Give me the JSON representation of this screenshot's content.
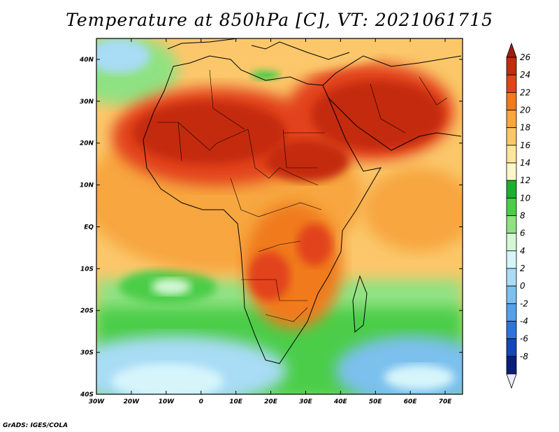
{
  "title": "Temperature at 850hPa [C], VT: 2021061715",
  "footer": "GrADS: IGES/COLA",
  "map": {
    "variable": "Temperature at 850hPa",
    "units": "C",
    "valid_time": "2021061715",
    "lon_range": [
      -30,
      75
    ],
    "lat_range": [
      -40,
      45
    ],
    "x_ticks": [
      "30W",
      "20W",
      "10W",
      "0",
      "10E",
      "20E",
      "30E",
      "40E",
      "50E",
      "60E",
      "70E"
    ],
    "y_ticks": [
      "40N",
      "30N",
      "20N",
      "10N",
      "EQ",
      "10S",
      "20S",
      "30S",
      "40S"
    ]
  },
  "colorbar": {
    "labels": [
      "26",
      "24",
      "22",
      "20",
      "18",
      "16",
      "14",
      "12",
      "10",
      "8",
      "6",
      "4",
      "2",
      "0",
      "-2",
      "-4",
      "-6",
      "-8"
    ],
    "colors": [
      "#a01d0c",
      "#c42a0e",
      "#e2431a",
      "#f07a1e",
      "#f7a640",
      "#fbc76a",
      "#fde59c",
      "#fdf6c8",
      "#1fae2f",
      "#4ccd4a",
      "#8fe282",
      "#d6f7d6",
      "#d6f5fb",
      "#a9dcf5",
      "#7cc0ee",
      "#55a0e6",
      "#2f73d8",
      "#1646b4",
      "#0a1e78",
      "#ececff"
    ]
  },
  "icons": {
    "colorbar_top": "triangle-up-icon",
    "colorbar_bottom": "triangle-down-icon"
  }
}
